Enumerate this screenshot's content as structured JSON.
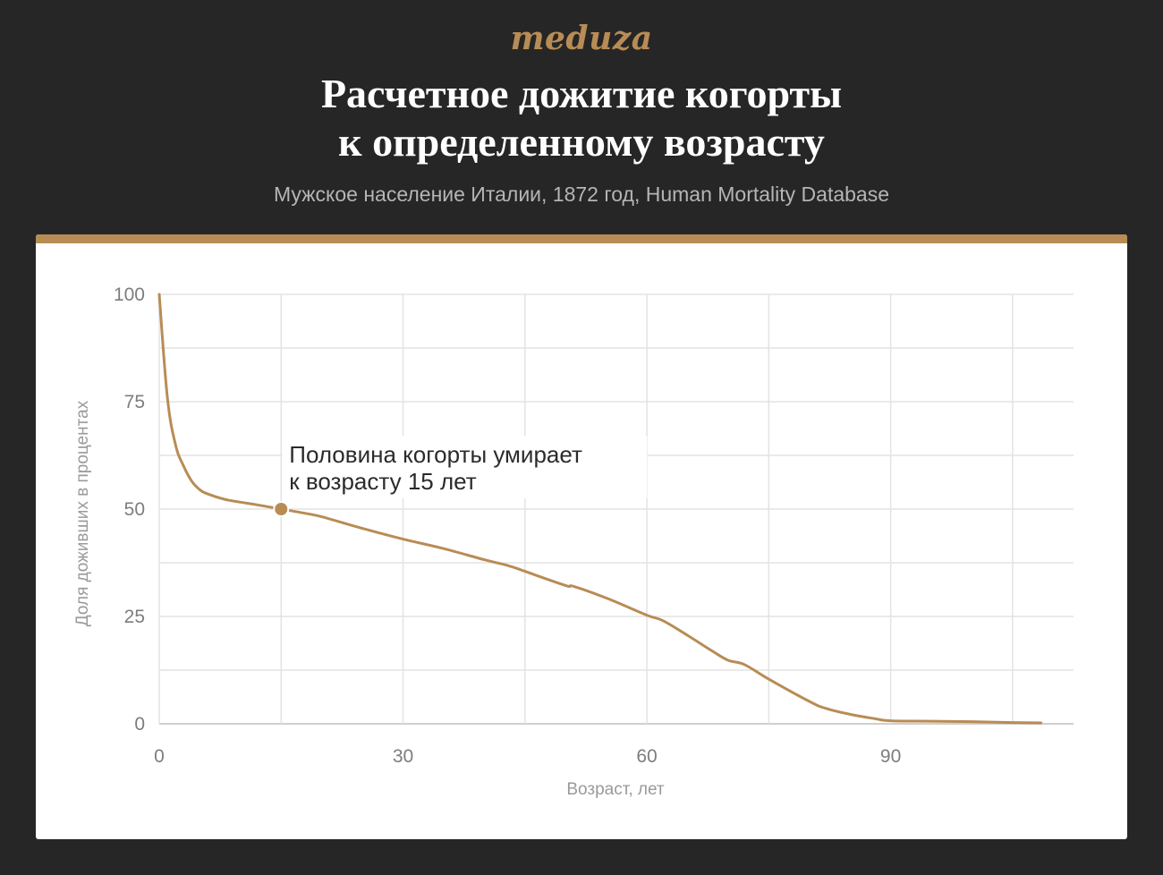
{
  "header": {
    "logo": "meduza",
    "title_line1": "Расчетное дожитие когорты",
    "title_line2": "к определенному возрасту",
    "subtitle": "Мужское население Италии, 1872 год, Human Mortality Database"
  },
  "colors": {
    "background": "#262626",
    "accent": "#b88c55",
    "line": "#b88c55",
    "grid": "#e3e3e3",
    "card": "#ffffff"
  },
  "chart_data": {
    "type": "line",
    "xlabel": "Возраст, лет",
    "ylabel": "Доля доживших в процентах",
    "xlim": [
      0,
      112.5
    ],
    "ylim": [
      0,
      100
    ],
    "x_ticks": [
      0,
      30,
      60,
      90
    ],
    "x_tick_labels": [
      "0",
      "30",
      "60",
      "90"
    ],
    "x_grid": [
      0,
      15,
      30,
      45,
      60,
      75,
      90,
      105
    ],
    "y_ticks": [
      0,
      25,
      50,
      75,
      100
    ],
    "y_tick_labels": [
      "0",
      "25",
      "50",
      "75",
      "100"
    ],
    "y_grid": [
      0,
      12.5,
      25,
      37.5,
      50,
      62.5,
      75,
      87.5,
      100
    ],
    "grid": true,
    "series": [
      {
        "x": [
          0,
          1,
          2,
          3,
          4,
          5,
          6,
          8,
          10,
          12,
          15,
          18,
          20,
          25,
          30,
          35,
          40,
          43,
          45,
          50,
          51,
          55,
          60,
          62,
          65,
          68,
          70,
          72,
          75,
          80,
          82,
          85,
          88,
          90,
          95,
          100,
          105,
          108.5
        ],
        "y": [
          100,
          76,
          65,
          60,
          56.5,
          54.5,
          53.5,
          52.3,
          51.6,
          51,
          50,
          49,
          48.2,
          45.5,
          43,
          40.8,
          38.2,
          36.8,
          35.5,
          32.2,
          32,
          29.3,
          25.3,
          24,
          20.6,
          17,
          14.8,
          13.8,
          10.4,
          5.2,
          3.6,
          2.2,
          1.2,
          0.7,
          0.6,
          0.5,
          0.3,
          0.2
        ]
      }
    ],
    "highlight": {
      "x": 15,
      "y": 50
    },
    "annotation": [
      "Половина когорты умирает",
      "к возрасту 15 лет"
    ]
  }
}
